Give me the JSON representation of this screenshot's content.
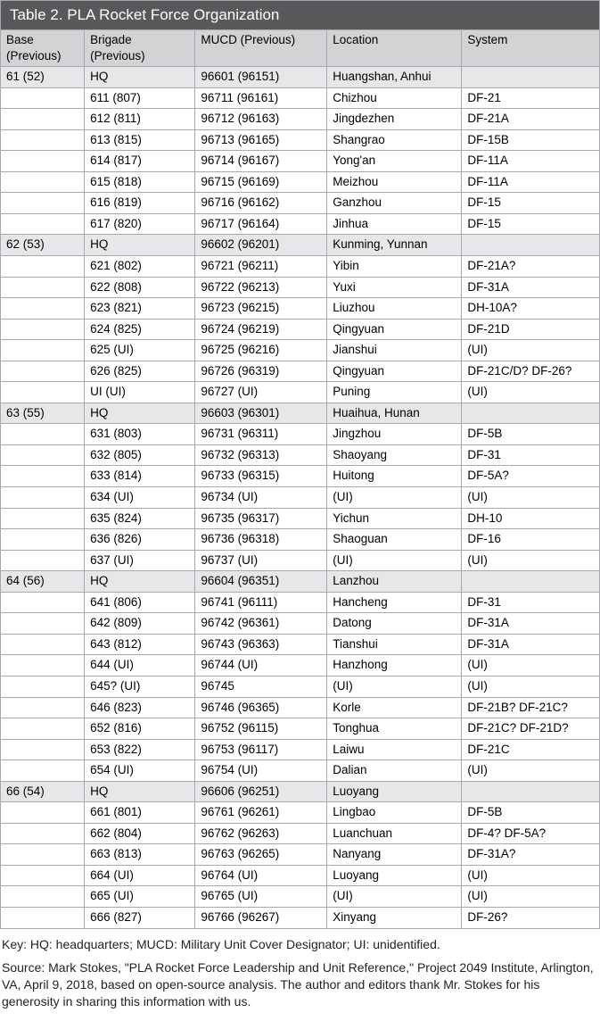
{
  "title": "Table 2. PLA Rocket Force Organization",
  "columns": [
    "Base (Previous)",
    "Brigade (Previous)",
    "MUCD (Previous)",
    "Location",
    "System"
  ],
  "colors": {
    "title_bg": "#58595b",
    "title_fg": "#ffffff",
    "header_bg": "#d1d3d4",
    "hq_row_bg": "#e6e7e8",
    "border": "#a7a9ac",
    "text": "#231f20"
  },
  "rows": [
    {
      "hq": true,
      "cells": [
        "61 (52)",
        "HQ",
        "96601 (96151)",
        "Huangshan, Anhui",
        ""
      ]
    },
    {
      "hq": false,
      "cells": [
        "",
        "611 (807)",
        "96711 (96161)",
        "Chizhou",
        "DF-21"
      ]
    },
    {
      "hq": false,
      "cells": [
        "",
        "612 (811)",
        "96712 (96163)",
        "Jingdezhen",
        "DF-21A"
      ]
    },
    {
      "hq": false,
      "cells": [
        "",
        "613 (815)",
        "96713 (96165)",
        "Shangrao",
        "DF-15B"
      ]
    },
    {
      "hq": false,
      "cells": [
        "",
        "614 (817)",
        "96714 (96167)",
        "Yong'an",
        "DF-11A"
      ]
    },
    {
      "hq": false,
      "cells": [
        "",
        "615 (818)",
        "96715 (96169)",
        "Meizhou",
        "DF-11A"
      ]
    },
    {
      "hq": false,
      "cells": [
        "",
        "616 (819)",
        "96716 (96162)",
        "Ganzhou",
        "DF-15"
      ]
    },
    {
      "hq": false,
      "cells": [
        "",
        "617 (820)",
        "96717 (96164)",
        "Jinhua",
        "DF-15"
      ]
    },
    {
      "hq": true,
      "cells": [
        "62 (53)",
        "HQ",
        "96602 (96201)",
        "Kunming, Yunnan",
        ""
      ]
    },
    {
      "hq": false,
      "cells": [
        "",
        "621 (802)",
        "96721 (96211)",
        "Yibin",
        "DF-21A?"
      ]
    },
    {
      "hq": false,
      "cells": [
        "",
        "622 (808)",
        "96722 (96213)",
        "Yuxi",
        "DF-31A"
      ]
    },
    {
      "hq": false,
      "cells": [
        "",
        "623 (821)",
        "96723 (96215)",
        "Liuzhou",
        "DH-10A?"
      ]
    },
    {
      "hq": false,
      "cells": [
        "",
        "624 (825)",
        "96724 (96219)",
        "Qingyuan",
        "DF-21D"
      ]
    },
    {
      "hq": false,
      "cells": [
        "",
        "625 (UI)",
        "96725 (96216)",
        "Jianshui",
        "(UI)"
      ]
    },
    {
      "hq": false,
      "cells": [
        "",
        "626 (825)",
        "96726 (96319)",
        "Qingyuan",
        "DF-21C/D? DF-26?"
      ]
    },
    {
      "hq": false,
      "cells": [
        "",
        "UI (UI)",
        "96727 (UI)",
        "Puning",
        "(UI)"
      ]
    },
    {
      "hq": true,
      "cells": [
        "63 (55)",
        "HQ",
        "96603 (96301)",
        "Huaihua, Hunan",
        ""
      ]
    },
    {
      "hq": false,
      "cells": [
        "",
        "631 (803)",
        "96731 (96311)",
        "Jingzhou",
        "DF-5B"
      ]
    },
    {
      "hq": false,
      "cells": [
        "",
        "632 (805)",
        "96732 (96313)",
        "Shaoyang",
        "DF-31"
      ]
    },
    {
      "hq": false,
      "cells": [
        "",
        "633 (814)",
        "96733 (96315)",
        "Huitong",
        "DF-5A?"
      ]
    },
    {
      "hq": false,
      "cells": [
        "",
        "634 (UI)",
        "96734 (UI)",
        "(UI)",
        "(UI)"
      ]
    },
    {
      "hq": false,
      "cells": [
        "",
        "635 (824)",
        "96735 (96317)",
        "Yichun",
        "DH-10"
      ]
    },
    {
      "hq": false,
      "cells": [
        "",
        "636 (826)",
        "96736 (96318)",
        "Shaoguan",
        "DF-16"
      ]
    },
    {
      "hq": false,
      "cells": [
        "",
        "637 (UI)",
        "96737 (UI)",
        "(UI)",
        "(UI)"
      ]
    },
    {
      "hq": true,
      "cells": [
        "64 (56)",
        "HQ",
        "96604 (96351)",
        "Lanzhou",
        ""
      ]
    },
    {
      "hq": false,
      "cells": [
        "",
        "641 (806)",
        "96741 (96111)",
        "Hancheng",
        "DF-31"
      ]
    },
    {
      "hq": false,
      "cells": [
        "",
        "642 (809)",
        "96742 (96361)",
        "Datong",
        "DF-31A"
      ]
    },
    {
      "hq": false,
      "cells": [
        "",
        "643 (812)",
        "96743 (96363)",
        "Tianshui",
        "DF-31A"
      ]
    },
    {
      "hq": false,
      "cells": [
        "",
        "644 (UI)",
        "96744 (UI)",
        "Hanzhong",
        "(UI)"
      ]
    },
    {
      "hq": false,
      "cells": [
        "",
        "645? (UI)",
        "96745",
        "(UI)",
        "(UI)"
      ]
    },
    {
      "hq": false,
      "cells": [
        "",
        "646 (823)",
        "96746 (96365)",
        "Korle",
        "DF-21B? DF-21C?"
      ]
    },
    {
      "hq": false,
      "cells": [
        "",
        "652 (816)",
        "96752 (96115)",
        "Tonghua",
        "DF-21C? DF-21D?"
      ]
    },
    {
      "hq": false,
      "cells": [
        "",
        "653 (822)",
        "96753 (96117)",
        "Laiwu",
        "DF-21C"
      ]
    },
    {
      "hq": false,
      "cells": [
        "",
        "654 (UI)",
        "96754 (UI)",
        "Dalian",
        "(UI)"
      ]
    },
    {
      "hq": true,
      "cells": [
        "66 (54)",
        "HQ",
        "96606 (96251)",
        "Luoyang",
        ""
      ]
    },
    {
      "hq": false,
      "cells": [
        "",
        "661 (801)",
        "96761 (96261)",
        "Lingbao",
        "DF-5B"
      ]
    },
    {
      "hq": false,
      "cells": [
        "",
        "662 (804)",
        "96762 (96263)",
        "Luanchuan",
        "DF-4? DF-5A?"
      ]
    },
    {
      "hq": false,
      "cells": [
        "",
        "663 (813)",
        "96763 (96265)",
        "Nanyang",
        "DF-31A?"
      ]
    },
    {
      "hq": false,
      "cells": [
        "",
        "664 (UI)",
        "96764 (UI)",
        "Luoyang",
        "(UI)"
      ]
    },
    {
      "hq": false,
      "cells": [
        "",
        "665 (UI)",
        "96765 (UI)",
        "(UI)",
        "(UI)"
      ]
    },
    {
      "hq": false,
      "cells": [
        "",
        "666 (827)",
        "96766 (96267)",
        "Xinyang",
        "DF-26?"
      ]
    }
  ],
  "key_text": "Key: HQ: headquarters; MUCD: Military Unit Cover Designator; UI: unidentified.",
  "source_text": "Source: Mark Stokes, \"PLA Rocket Force Leadership and Unit Reference,\" Project 2049 Institute, Arlington, VA, April 9, 2018, based on open-source analysis. The author and editors thank Mr. Stokes for his generosity in sharing this information with us."
}
